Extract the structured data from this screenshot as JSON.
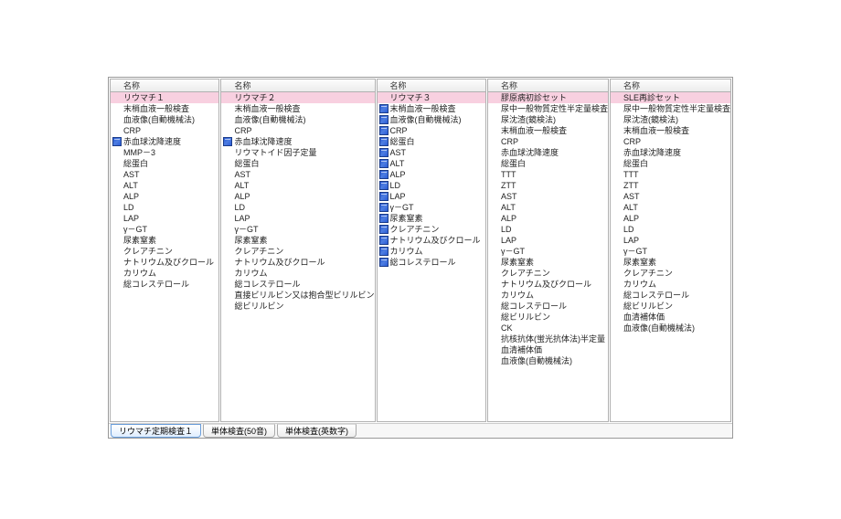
{
  "headerLabel": "名称",
  "highlightColor": "#f8d0e0",
  "iconBlueColor": "#2a5bd7",
  "columns": [
    {
      "items": [
        {
          "label": "リウマチ１",
          "hl": true,
          "icon": "blank"
        },
        {
          "label": "末梢血液一般検査",
          "icon": "blank"
        },
        {
          "label": "血液像(自動機械法)",
          "icon": "blank"
        },
        {
          "label": "CRP",
          "icon": "blank"
        },
        {
          "label": "赤血球沈降速度",
          "icon": "blue"
        },
        {
          "label": "MMP－3",
          "icon": "blank"
        },
        {
          "label": "総蛋白",
          "icon": "blank"
        },
        {
          "label": "AST",
          "icon": "blank"
        },
        {
          "label": "ALT",
          "icon": "blank"
        },
        {
          "label": "ALP",
          "icon": "blank"
        },
        {
          "label": "LD",
          "icon": "blank"
        },
        {
          "label": "LAP",
          "icon": "blank"
        },
        {
          "label": "γ－GT",
          "icon": "blank"
        },
        {
          "label": "尿素窒素",
          "icon": "blank"
        },
        {
          "label": "クレアチニン",
          "icon": "blank"
        },
        {
          "label": "ナトリウム及びクロール",
          "icon": "blank"
        },
        {
          "label": "カリウム",
          "icon": "blank"
        },
        {
          "label": "総コレステロール",
          "icon": "blank"
        }
      ]
    },
    {
      "items": [
        {
          "label": "リウマチ２",
          "hl": true,
          "icon": "blank"
        },
        {
          "label": "末梢血液一般検査",
          "icon": "blank"
        },
        {
          "label": "血液像(自動機械法)",
          "icon": "blank"
        },
        {
          "label": "CRP",
          "icon": "blank"
        },
        {
          "label": "赤血球沈降速度",
          "icon": "blue"
        },
        {
          "label": "リウマトイド因子定量",
          "icon": "blank"
        },
        {
          "label": "総蛋白",
          "icon": "blank"
        },
        {
          "label": "AST",
          "icon": "blank"
        },
        {
          "label": "ALT",
          "icon": "blank"
        },
        {
          "label": "ALP",
          "icon": "blank"
        },
        {
          "label": "LD",
          "icon": "blank"
        },
        {
          "label": "LAP",
          "icon": "blank"
        },
        {
          "label": "γ－GT",
          "icon": "blank"
        },
        {
          "label": "尿素窒素",
          "icon": "blank"
        },
        {
          "label": "クレアチニン",
          "icon": "blank"
        },
        {
          "label": "ナトリウム及びクロール",
          "icon": "blank"
        },
        {
          "label": "カリウム",
          "icon": "blank"
        },
        {
          "label": "総コレステロール",
          "icon": "blank"
        },
        {
          "label": "直接ビリルビン又は抱合型ビリルビン",
          "icon": "blank"
        },
        {
          "label": "総ビリルビン",
          "icon": "blank"
        }
      ]
    },
    {
      "items": [
        {
          "label": "リウマチ３",
          "hl": true,
          "icon": "blank"
        },
        {
          "label": "末梢血液一般検査",
          "icon": "blue"
        },
        {
          "label": "血液像(自動機械法)",
          "icon": "blue"
        },
        {
          "label": "CRP",
          "icon": "blue"
        },
        {
          "label": "総蛋白",
          "icon": "blue"
        },
        {
          "label": "AST",
          "icon": "blue"
        },
        {
          "label": "ALT",
          "icon": "blue"
        },
        {
          "label": "ALP",
          "icon": "blue"
        },
        {
          "label": "LD",
          "icon": "blue"
        },
        {
          "label": "LAP",
          "icon": "blue"
        },
        {
          "label": "γ－GT",
          "icon": "blue"
        },
        {
          "label": "尿素窒素",
          "icon": "blue"
        },
        {
          "label": "クレアチニン",
          "icon": "blue"
        },
        {
          "label": "ナトリウム及びクロール",
          "icon": "blue"
        },
        {
          "label": "カリウム",
          "icon": "blue"
        },
        {
          "label": "総コレステロール",
          "icon": "blue"
        }
      ]
    },
    {
      "items": [
        {
          "label": "膠原病初診セット",
          "hl": true,
          "icon": "blank"
        },
        {
          "label": "尿中一般物質定性半定量検査",
          "icon": "blank"
        },
        {
          "label": "尿沈渣(鏡検法)",
          "icon": "blank"
        },
        {
          "label": "末梢血液一般検査",
          "icon": "blank"
        },
        {
          "label": "CRP",
          "icon": "blank"
        },
        {
          "label": "赤血球沈降速度",
          "icon": "blank"
        },
        {
          "label": "総蛋白",
          "icon": "blank"
        },
        {
          "label": "TTT",
          "icon": "blank"
        },
        {
          "label": "ZTT",
          "icon": "blank"
        },
        {
          "label": "AST",
          "icon": "blank"
        },
        {
          "label": "ALT",
          "icon": "blank"
        },
        {
          "label": "ALP",
          "icon": "blank"
        },
        {
          "label": "LD",
          "icon": "blank"
        },
        {
          "label": "LAP",
          "icon": "blank"
        },
        {
          "label": "γ－GT",
          "icon": "blank"
        },
        {
          "label": "尿素窒素",
          "icon": "blank"
        },
        {
          "label": "クレアチニン",
          "icon": "blank"
        },
        {
          "label": "ナトリウム及びクロール",
          "icon": "blank"
        },
        {
          "label": "カリウム",
          "icon": "blank"
        },
        {
          "label": "総コレステロール",
          "icon": "blank"
        },
        {
          "label": "総ビリルビン",
          "icon": "blank"
        },
        {
          "label": "CK",
          "icon": "blank"
        },
        {
          "label": "抗核抗体(蛍光抗体法)半定量",
          "icon": "blank"
        },
        {
          "label": "血清補体価",
          "icon": "blank"
        },
        {
          "label": "血液像(自動機械法)",
          "icon": "blank"
        }
      ]
    },
    {
      "items": [
        {
          "label": "SLE再診セット",
          "hl": true,
          "icon": "blank"
        },
        {
          "label": "尿中一般物質定性半定量検査",
          "icon": "blank"
        },
        {
          "label": "尿沈渣(鏡検法)",
          "icon": "blank"
        },
        {
          "label": "末梢血液一般検査",
          "icon": "blank"
        },
        {
          "label": "CRP",
          "icon": "blank"
        },
        {
          "label": "赤血球沈降速度",
          "icon": "blank"
        },
        {
          "label": "総蛋白",
          "icon": "blank"
        },
        {
          "label": "TTT",
          "icon": "blank"
        },
        {
          "label": "ZTT",
          "icon": "blank"
        },
        {
          "label": "AST",
          "icon": "blank"
        },
        {
          "label": "ALT",
          "icon": "blank"
        },
        {
          "label": "ALP",
          "icon": "blank"
        },
        {
          "label": "LD",
          "icon": "blank"
        },
        {
          "label": "LAP",
          "icon": "blank"
        },
        {
          "label": "γ－GT",
          "icon": "blank"
        },
        {
          "label": "尿素窒素",
          "icon": "blank"
        },
        {
          "label": "クレアチニン",
          "icon": "blank"
        },
        {
          "label": "カリウム",
          "icon": "blank"
        },
        {
          "label": "総コレステロール",
          "icon": "blank"
        },
        {
          "label": "総ビリルビン",
          "icon": "blank"
        },
        {
          "label": "血清補体価",
          "icon": "blank"
        },
        {
          "label": "血液像(自動機械法)",
          "icon": "blank"
        }
      ]
    }
  ],
  "tabs": [
    {
      "label": "リウマチ定期検査１",
      "active": true
    },
    {
      "label": "単体検査(50音)",
      "active": false
    },
    {
      "label": "単体検査(英数字)",
      "active": false
    }
  ]
}
